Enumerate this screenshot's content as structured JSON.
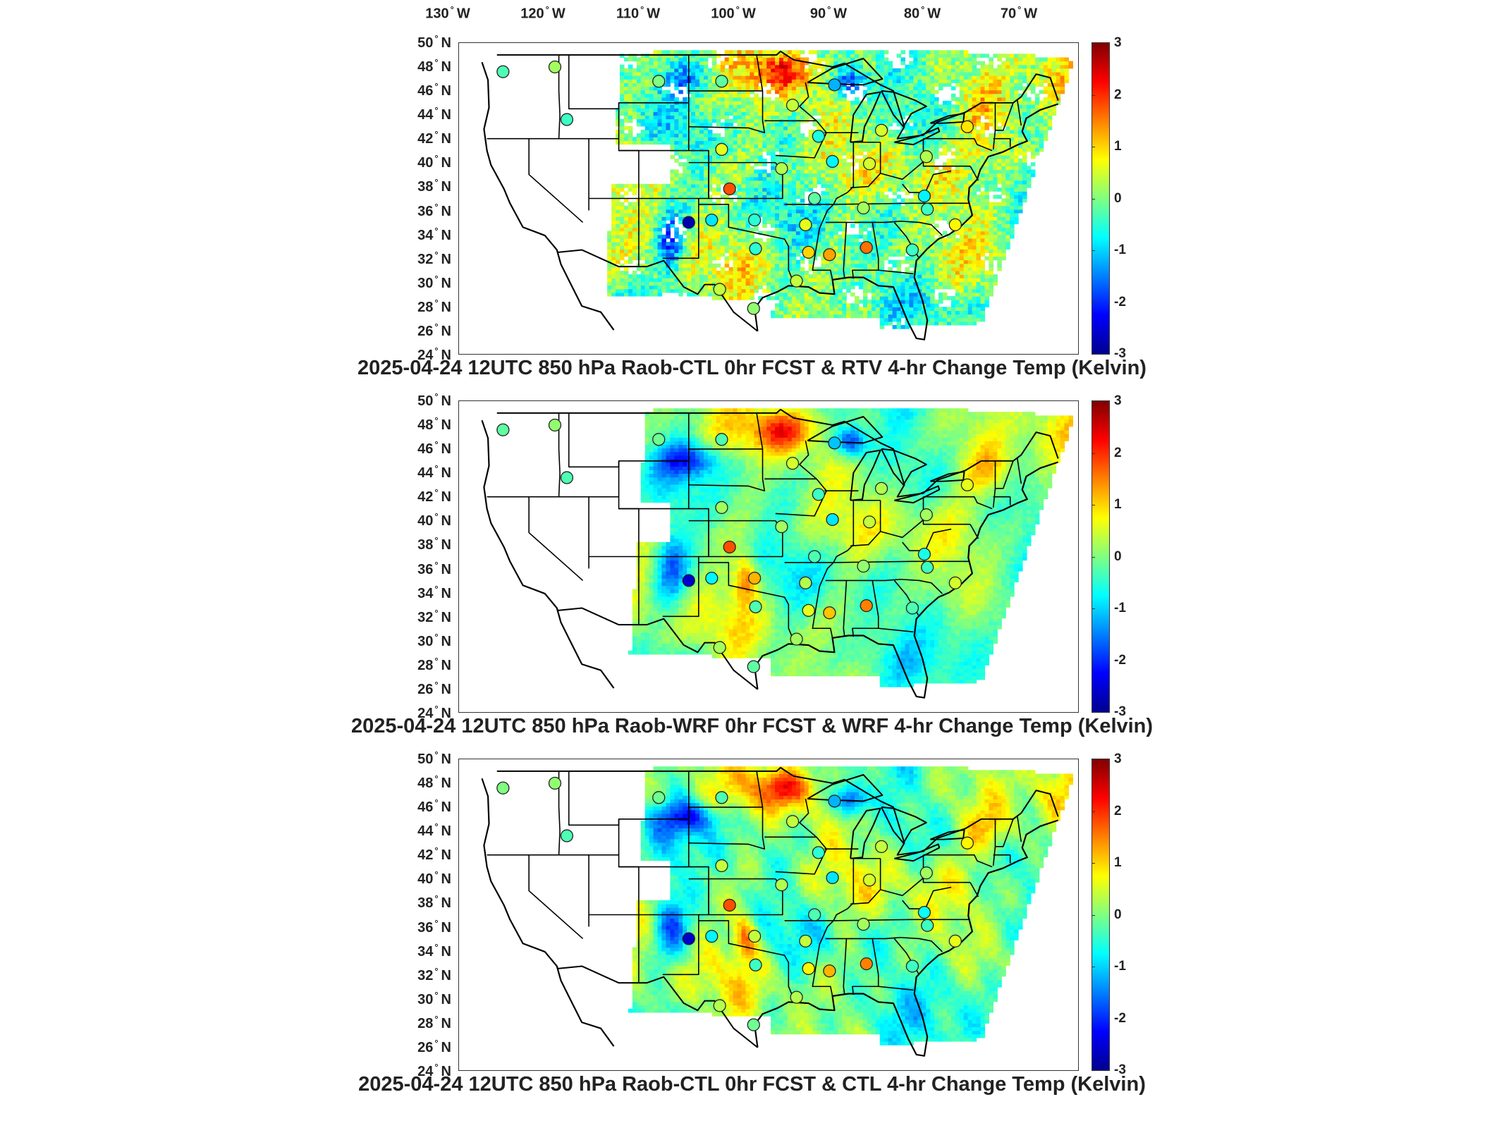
{
  "longitude_labels": [
    {
      "value": "130",
      "hemi": "W"
    },
    {
      "value": "120",
      "hemi": "W"
    },
    {
      "value": "110",
      "hemi": "W"
    },
    {
      "value": "100",
      "hemi": "W"
    },
    {
      "value": "90",
      "hemi": "W"
    },
    {
      "value": "80",
      "hemi": "W"
    },
    {
      "value": "70",
      "hemi": "W"
    }
  ],
  "latitude_labels": [
    {
      "value": "50",
      "hemi": "N"
    },
    {
      "value": "48",
      "hemi": "N"
    },
    {
      "value": "46",
      "hemi": "N"
    },
    {
      "value": "44",
      "hemi": "N"
    },
    {
      "value": "42",
      "hemi": "N"
    },
    {
      "value": "40",
      "hemi": "N"
    },
    {
      "value": "38",
      "hemi": "N"
    },
    {
      "value": "36",
      "hemi": "N"
    },
    {
      "value": "34",
      "hemi": "N"
    },
    {
      "value": "32",
      "hemi": "N"
    },
    {
      "value": "30",
      "hemi": "N"
    },
    {
      "value": "28",
      "hemi": "N"
    },
    {
      "value": "26",
      "hemi": "N"
    },
    {
      "value": "24",
      "hemi": "N"
    }
  ],
  "colorbar": {
    "ticks": [
      "3",
      "2",
      "1",
      "0",
      "-1",
      "-2",
      "-3"
    ],
    "colormap": [
      "#00008f",
      "#0000ff",
      "#0080ff",
      "#00ffff",
      "#80ff80",
      "#ffff00",
      "#ff8000",
      "#ff0000",
      "#800000"
    ]
  },
  "panels": [
    {
      "title": "2025-04-24 12UTC 850 hPa Raob-CTL 0hr FCST & RTV 4-hr Change Temp (Kelvin)",
      "field_style": "rtv-sparse"
    },
    {
      "title": "2025-04-24 12UTC 850 hPa Raob-WRF 0hr FCST & WRF 4-hr Change Temp (Kelvin)",
      "field_style": "wrf-smooth"
    },
    {
      "title": "2025-04-24 12UTC 850 hPa Raob-CTL 0hr FCST & CTL 4-hr Change Temp (Kelvin)",
      "field_style": "ctl-smooth"
    }
  ],
  "raob_stations": [
    {
      "lon": -122.6,
      "lat": 47.6,
      "v1": -0.3,
      "v2": -0.2,
      "v3": 0.0
    },
    {
      "lon": -117.4,
      "lat": 48.0,
      "v1": 0.2,
      "v2": 0.1,
      "v3": 0.1
    },
    {
      "lon": -107.0,
      "lat": 46.8,
      "v1": 0.0,
      "v2": -0.1,
      "v3": -0.1
    },
    {
      "lon": -116.2,
      "lat": 43.6,
      "v1": -0.4,
      "v2": -0.3,
      "v3": -0.3
    },
    {
      "lon": -100.7,
      "lat": 46.8,
      "v1": -0.2,
      "v2": -0.3,
      "v3": -0.3
    },
    {
      "lon": -93.6,
      "lat": 44.8,
      "v1": 0.4,
      "v2": 0.5,
      "v3": 0.4
    },
    {
      "lon": -89.4,
      "lat": 46.5,
      "v1": -1.2,
      "v2": -1.1,
      "v3": -1.2
    },
    {
      "lon": -84.7,
      "lat": 42.7,
      "v1": 0.5,
      "v2": 0.3,
      "v3": 0.4
    },
    {
      "lon": -76.1,
      "lat": 43.0,
      "v1": 0.9,
      "v2": 0.6,
      "v3": 0.8
    },
    {
      "lon": -100.7,
      "lat": 41.1,
      "v1": 0.6,
      "v2": 0.2,
      "v3": 0.4
    },
    {
      "lon": -91.0,
      "lat": 42.2,
      "v1": -0.6,
      "v2": -0.4,
      "v3": -0.5
    },
    {
      "lon": -89.6,
      "lat": 40.1,
      "v1": -0.8,
      "v2": -0.9,
      "v3": -0.9
    },
    {
      "lon": -85.9,
      "lat": 39.9,
      "v1": 0.5,
      "v2": 0.4,
      "v3": 0.5
    },
    {
      "lon": -80.2,
      "lat": 40.5,
      "v1": 0.3,
      "v2": 0.2,
      "v3": 0.2
    },
    {
      "lon": -99.9,
      "lat": 37.8,
      "v1": 1.8,
      "v2": 1.8,
      "v3": 1.8
    },
    {
      "lon": -94.7,
      "lat": 39.5,
      "v1": 0.3,
      "v2": 0.2,
      "v3": 0.3
    },
    {
      "lon": -91.4,
      "lat": 37.0,
      "v1": -0.2,
      "v2": -0.3,
      "v3": -0.3
    },
    {
      "lon": -86.5,
      "lat": 36.2,
      "v1": 0.2,
      "v2": 0.1,
      "v3": 0.2
    },
    {
      "lon": -80.4,
      "lat": 37.2,
      "v1": -0.8,
      "v2": -0.6,
      "v3": -0.7
    },
    {
      "lon": -80.1,
      "lat": 36.1,
      "v1": -0.4,
      "v2": -0.4,
      "v3": -0.4
    },
    {
      "lon": -104.0,
      "lat": 35.0,
      "v1": -2.8,
      "v2": -2.6,
      "v3": -2.6
    },
    {
      "lon": -101.7,
      "lat": 35.2,
      "v1": -0.9,
      "v2": -0.8,
      "v3": -0.8
    },
    {
      "lon": -97.4,
      "lat": 35.2,
      "v1": -0.5,
      "v2": 1.2,
      "v3": 0.4
    },
    {
      "lon": -92.3,
      "lat": 34.8,
      "v1": 0.6,
      "v2": 0.3,
      "v3": 0.4
    },
    {
      "lon": -97.3,
      "lat": 32.8,
      "v1": -0.5,
      "v2": -0.3,
      "v3": -0.4
    },
    {
      "lon": -92.0,
      "lat": 32.5,
      "v1": 1.0,
      "v2": 0.6,
      "v3": 0.8
    },
    {
      "lon": -89.9,
      "lat": 32.3,
      "v1": 1.3,
      "v2": 1.1,
      "v3": 1.2
    },
    {
      "lon": -86.2,
      "lat": 32.9,
      "v1": 1.6,
      "v2": 1.5,
      "v3": 1.5
    },
    {
      "lon": -81.6,
      "lat": 32.7,
      "v1": -0.4,
      "v2": -0.3,
      "v3": -0.4
    },
    {
      "lon": -77.3,
      "lat": 34.8,
      "v1": 0.8,
      "v2": 0.5,
      "v3": 0.6
    },
    {
      "lon": -93.2,
      "lat": 30.1,
      "v1": 0.4,
      "v2": 0.2,
      "v3": 0.3
    },
    {
      "lon": -97.5,
      "lat": 27.8,
      "v1": 0.1,
      "v2": -0.2,
      "v3": -0.1
    },
    {
      "lon": -100.9,
      "lat": 29.4,
      "v1": 0.4,
      "v2": 0.2,
      "v3": 0.3
    }
  ]
}
